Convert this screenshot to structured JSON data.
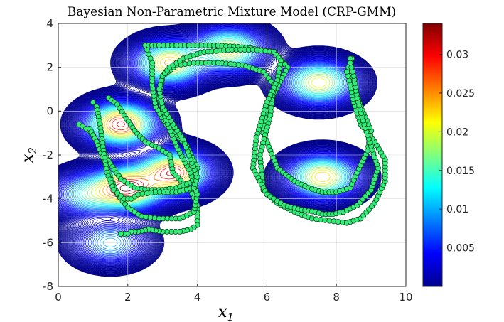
{
  "chart_data": {
    "type": "contour",
    "title": "Bayesian Non-Parametric Mixture Model (CRP-GMM)",
    "xlabel": "x",
    "xlabel_sub": "1",
    "ylabel": "x",
    "ylabel_sub": "2",
    "xlim": [
      0,
      10
    ],
    "ylim": [
      -8,
      4
    ],
    "xticks": [
      "0",
      "2",
      "4",
      "6",
      "8",
      "10"
    ],
    "yticks": [
      "4",
      "2",
      "0",
      "-2",
      "-4",
      "-6",
      "-8"
    ],
    "grid": true,
    "colormap": "jet",
    "colorbar": {
      "range": [
        0,
        0.034
      ],
      "ticks": [
        "0.005",
        "0.01",
        "0.015",
        "0.02",
        "0.025",
        "0.03"
      ]
    },
    "mixture_components": [
      {
        "mean": [
          1.8,
          -0.6
        ],
        "peak": 0.032
      },
      {
        "mean": [
          2.0,
          -3.5
        ],
        "peak": 0.033
      },
      {
        "mean": [
          3.3,
          -2.8
        ],
        "peak": 0.031
      },
      {
        "mean": [
          3.2,
          2.2
        ],
        "peak": 0.025
      },
      {
        "mean": [
          4.9,
          2.8
        ],
        "peak": 0.022
      },
      {
        "mean": [
          7.5,
          1.3
        ],
        "peak": 0.022
      },
      {
        "mean": [
          7.6,
          -3.0
        ],
        "peak": 0.024
      },
      {
        "mean": [
          0.9,
          -3.8
        ],
        "peak": 0.014
      },
      {
        "mean": [
          1.5,
          -6.0
        ],
        "peak": 0.011
      }
    ],
    "demonstrations": [
      {
        "name": "",
        "x": [
          1.45,
          1.7,
          1.9,
          2.2,
          2.5,
          2.9,
          3.2,
          3.3,
          3.6,
          3.8,
          4.0,
          4.0,
          3.8,
          3.5,
          3.0,
          2.6,
          2.3,
          2.2,
          2.1,
          2.0,
          1.7
        ],
        "y": [
          0.6,
          0.3,
          -0.2,
          -0.9,
          -1.4,
          -1.7,
          -2.0,
          -2.8,
          -3.3,
          -3.6,
          -4.3,
          -5.2,
          -5.4,
          -5.5,
          -5.5,
          -5.4,
          -5.5,
          -5.5,
          -5.5,
          -5.6,
          -5.6
        ]
      },
      {
        "name": "",
        "x": [
          0.6,
          0.9,
          1.2,
          1.5,
          1.8,
          2.2,
          2.6,
          3.0,
          3.4,
          3.9,
          4.0,
          3.7,
          3.1,
          2.8,
          2.7,
          2.7,
          2.6,
          2.5,
          2.9,
          3.4,
          4.0,
          4.6,
          5.4,
          6.2,
          6.6,
          6.0,
          5.9,
          6.3,
          6.8,
          7.2,
          7.6,
          8.0,
          8.4,
          8.6,
          8.9,
          9.0,
          8.7,
          8.5,
          8.4
        ],
        "y": [
          -0.6,
          -0.9,
          -1.6,
          -2.4,
          -3.1,
          -3.5,
          -3.6,
          -3.6,
          -3.5,
          -3.2,
          -2.6,
          -1.6,
          -0.6,
          0.2,
          1.2,
          2.2,
          2.6,
          3.0,
          3.0,
          3.0,
          3.0,
          3.0,
          2.9,
          2.7,
          2.0,
          0.2,
          -1.0,
          -2.6,
          -3.2,
          -3.5,
          -3.7,
          -3.7,
          -3.5,
          -2.8,
          -1.8,
          -0.9,
          0.2,
          1.2,
          2.4
        ]
      },
      {
        "name": "",
        "x": [
          0.9,
          1.1,
          1.4,
          1.7,
          2.0,
          2.4,
          2.9,
          3.5,
          3.9,
          4.0,
          3.8,
          3.4,
          3.1,
          2.9,
          3.0,
          3.4,
          3.9,
          4.6,
          5.3,
          5.9,
          6.2,
          6.1,
          5.8,
          5.9,
          6.3,
          6.8,
          7.3,
          7.8,
          8.3,
          8.7,
          9.1,
          9.4,
          9.4,
          9.1,
          8.7,
          8.5,
          8.4,
          8.3,
          8.4,
          8.5
        ],
        "y": [
          -0.8,
          -1.4,
          -2.6,
          -3.8,
          -4.4,
          -4.8,
          -4.9,
          -4.9,
          -4.6,
          -3.8,
          -2.8,
          -1.6,
          -0.4,
          0.6,
          1.6,
          2.1,
          2.2,
          2.2,
          2.1,
          1.8,
          1.2,
          -0.2,
          -2.0,
          -3.6,
          -4.2,
          -4.6,
          -4.9,
          -5.0,
          -5.1,
          -4.9,
          -4.2,
          -3.2,
          -2.2,
          -1.4,
          -0.6,
          0.4,
          1.2,
          1.8,
          2.2,
          2.6
        ]
      },
      {
        "name": "",
        "x": [
          1.0,
          1.1,
          1.2,
          1.3,
          1.4,
          1.6,
          1.9,
          2.1,
          2.3,
          2.8,
          3.4,
          3.9,
          4.0,
          3.8,
          3.6,
          3.3,
          3.0,
          2.9,
          3.0,
          3.2,
          3.6,
          4.2,
          5.0,
          5.6,
          6.2,
          6.4,
          6.3,
          6.0,
          5.7,
          5.6,
          6.0,
          6.5,
          7.0,
          7.4,
          7.6,
          7.9,
          8.2,
          8.6,
          9.0,
          9.2,
          9.0,
          8.8,
          8.6,
          8.5,
          8.4,
          8.4
        ],
        "y": [
          0.4,
          0.2,
          -0.6,
          -1.8,
          -2.8,
          -3.6,
          -4.0,
          -4.0,
          -3.8,
          -3.7,
          -3.7,
          -3.5,
          -3.0,
          -2.2,
          -1.3,
          -0.6,
          0.2,
          1.0,
          1.6,
          2.0,
          2.4,
          2.7,
          2.8,
          2.8,
          2.7,
          2.3,
          1.4,
          0.4,
          -1.2,
          -2.6,
          -3.8,
          -4.3,
          -4.5,
          -4.6,
          -4.7,
          -4.7,
          -4.6,
          -4.3,
          -3.6,
          -2.6,
          -1.6,
          -0.6,
          0.6,
          1.6,
          2.2,
          2.6
        ]
      }
    ]
  }
}
